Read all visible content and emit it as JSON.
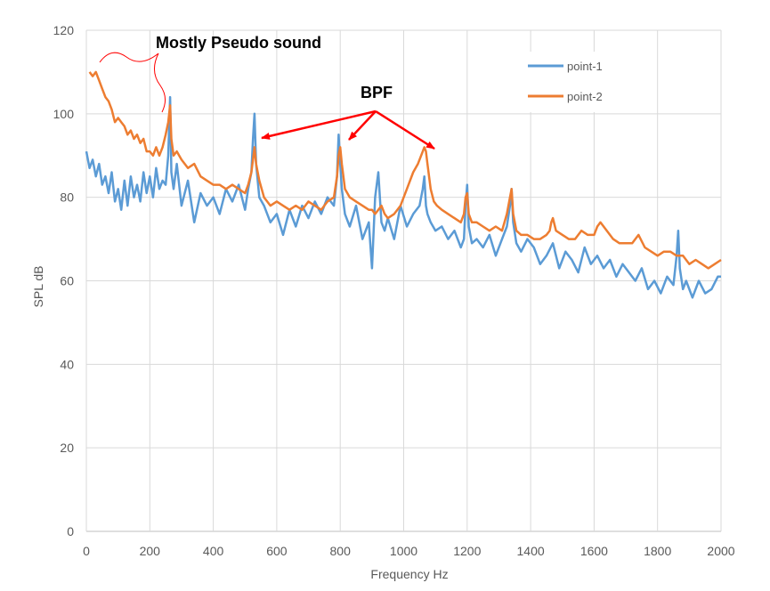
{
  "chart_data": {
    "type": "line",
    "title": "",
    "xlabel": "Frequency Hz",
    "ylabel": "SPL dB",
    "xlim": [
      0,
      2000
    ],
    "ylim": [
      0,
      120
    ],
    "xticks": [
      0,
      200,
      400,
      600,
      800,
      1000,
      1200,
      1400,
      1600,
      1800,
      2000
    ],
    "yticks": [
      0,
      20,
      40,
      60,
      80,
      100,
      120
    ],
    "grid": true,
    "legend_position": "top-right",
    "annotations": {
      "pseudo": "Mostly Pseudo sound",
      "bpf": "BPF"
    },
    "series": [
      {
        "name": "point-1",
        "color": "#5B9BD5",
        "x": [
          0,
          10,
          20,
          30,
          40,
          50,
          60,
          70,
          80,
          90,
          100,
          110,
          120,
          130,
          140,
          150,
          160,
          170,
          180,
          190,
          200,
          210,
          220,
          230,
          240,
          250,
          258,
          264,
          268,
          275,
          285,
          300,
          320,
          340,
          360,
          380,
          400,
          420,
          440,
          460,
          480,
          500,
          510,
          520,
          525,
          530,
          535,
          545,
          560,
          580,
          600,
          620,
          640,
          660,
          680,
          700,
          720,
          740,
          760,
          780,
          790,
          795,
          800,
          805,
          815,
          830,
          850,
          870,
          890,
          900,
          910,
          920,
          930,
          940,
          950,
          970,
          990,
          1010,
          1030,
          1050,
          1060,
          1065,
          1070,
          1075,
          1085,
          1100,
          1120,
          1140,
          1160,
          1180,
          1190,
          1195,
          1200,
          1205,
          1215,
          1230,
          1250,
          1270,
          1290,
          1310,
          1325,
          1335,
          1340,
          1345,
          1355,
          1370,
          1390,
          1410,
          1430,
          1450,
          1470,
          1490,
          1510,
          1530,
          1550,
          1570,
          1590,
          1610,
          1630,
          1650,
          1670,
          1690,
          1710,
          1730,
          1750,
          1770,
          1790,
          1810,
          1830,
          1850,
          1860,
          1865,
          1870,
          1880,
          1890,
          1910,
          1930,
          1950,
          1970,
          1990,
          2000
        ],
        "y": [
          91,
          87,
          89,
          85,
          88,
          83,
          85,
          81,
          86,
          79,
          82,
          77,
          84,
          78,
          85,
          80,
          83,
          79,
          86,
          81,
          85,
          80,
          87,
          82,
          84,
          83,
          90,
          104,
          86,
          82,
          88,
          78,
          84,
          74,
          81,
          78,
          80,
          76,
          82,
          79,
          83,
          77,
          82,
          86,
          94,
          100,
          88,
          80,
          78,
          74,
          76,
          71,
          77,
          73,
          78,
          75,
          79,
          76,
          80,
          78,
          85,
          95,
          88,
          82,
          76,
          73,
          78,
          70,
          74,
          63,
          80,
          86,
          74,
          72,
          75,
          70,
          78,
          73,
          76,
          78,
          82,
          85,
          78,
          76,
          74,
          72,
          73,
          70,
          72,
          68,
          70,
          78,
          83,
          73,
          69,
          70,
          68,
          71,
          66,
          70,
          73,
          78,
          82,
          74,
          69,
          67,
          70,
          68,
          64,
          66,
          69,
          63,
          67,
          65,
          62,
          68,
          64,
          66,
          63,
          65,
          61,
          64,
          62,
          60,
          63,
          58,
          60,
          57,
          61,
          59,
          66,
          72,
          63,
          58,
          60,
          56,
          60,
          57,
          58,
          61,
          61
        ]
      },
      {
        "name": "point-2",
        "color": "#ED7D31",
        "x": [
          10,
          20,
          30,
          40,
          50,
          60,
          70,
          80,
          90,
          100,
          110,
          120,
          130,
          140,
          150,
          160,
          170,
          180,
          190,
          200,
          210,
          220,
          230,
          240,
          250,
          258,
          264,
          268,
          275,
          285,
          300,
          320,
          340,
          360,
          380,
          400,
          420,
          440,
          460,
          480,
          500,
          510,
          520,
          525,
          530,
          535,
          545,
          560,
          580,
          600,
          620,
          640,
          660,
          680,
          700,
          720,
          740,
          760,
          780,
          790,
          795,
          800,
          805,
          815,
          830,
          850,
          870,
          890,
          900,
          910,
          920,
          930,
          940,
          950,
          970,
          990,
          1010,
          1030,
          1045,
          1055,
          1065,
          1070,
          1075,
          1085,
          1095,
          1105,
          1120,
          1140,
          1160,
          1180,
          1190,
          1195,
          1200,
          1205,
          1215,
          1230,
          1250,
          1270,
          1290,
          1310,
          1325,
          1335,
          1340,
          1345,
          1355,
          1370,
          1390,
          1410,
          1430,
          1450,
          1460,
          1465,
          1470,
          1480,
          1500,
          1520,
          1540,
          1560,
          1580,
          1600,
          1610,
          1620,
          1640,
          1660,
          1680,
          1700,
          1720,
          1730,
          1740,
          1760,
          1780,
          1800,
          1820,
          1840,
          1860,
          1880,
          1900,
          1920,
          1940,
          1960,
          1980,
          2000
        ],
        "y": [
          110,
          109,
          110,
          108,
          106,
          104,
          103,
          101,
          98,
          99,
          98,
          97,
          95,
          96,
          94,
          95,
          93,
          94,
          91,
          91,
          90,
          92,
          90,
          92,
          95,
          98,
          102,
          94,
          90,
          91,
          89,
          87,
          88,
          85,
          84,
          83,
          83,
          82,
          83,
          82,
          81,
          83,
          86,
          89,
          92,
          88,
          84,
          80,
          78,
          79,
          78,
          77,
          78,
          77,
          79,
          78,
          77,
          79,
          80,
          85,
          90,
          92,
          88,
          82,
          80,
          79,
          78,
          77,
          77,
          76,
          77,
          78,
          76,
          75,
          76,
          78,
          82,
          86,
          88,
          90,
          92,
          91,
          88,
          82,
          79,
          78,
          77,
          76,
          75,
          74,
          76,
          80,
          81,
          76,
          74,
          74,
          73,
          72,
          73,
          72,
          76,
          80,
          82,
          76,
          72,
          71,
          71,
          70,
          70,
          71,
          72,
          74,
          75,
          72,
          71,
          70,
          70,
          72,
          71,
          71,
          73,
          74,
          72,
          70,
          69,
          69,
          69,
          70,
          71,
          68,
          67,
          66,
          67,
          67,
          66,
          66,
          64,
          65,
          64,
          63,
          64,
          65
        ]
      }
    ]
  }
}
